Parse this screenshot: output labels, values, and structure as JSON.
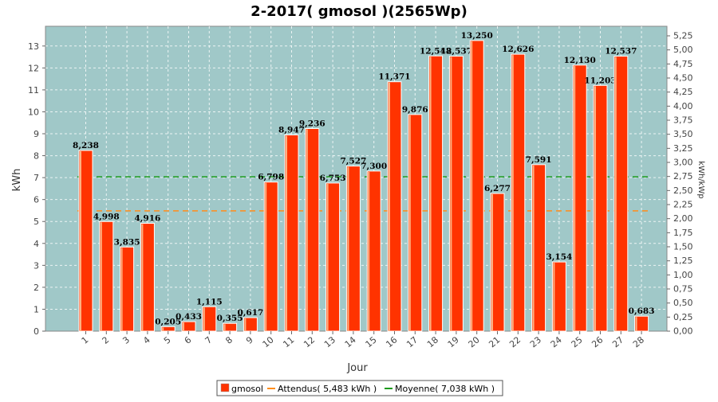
{
  "chart_data": {
    "type": "bar",
    "title": "2-2017( gmosol )(2565Wp)",
    "xlabel": "Jour",
    "ylabel": "kWh",
    "ylabel_right": "kWh/kWp",
    "categories": [
      "1",
      "2",
      "3",
      "4",
      "5",
      "6",
      "7",
      "8",
      "9",
      "10",
      "11",
      "12",
      "13",
      "14",
      "15",
      "16",
      "17",
      "18",
      "19",
      "20",
      "21",
      "22",
      "23",
      "24",
      "25",
      "26",
      "27",
      "28"
    ],
    "series": [
      {
        "name": "gmosol",
        "color": "#ff3300",
        "values": [
          8.238,
          4.998,
          3.835,
          4.916,
          0.205,
          0.433,
          1.115,
          0.355,
          0.617,
          6.798,
          8.947,
          9.236,
          6.753,
          7.527,
          7.3,
          11.371,
          9.876,
          12.548,
          12.537,
          13.25,
          6.277,
          12.626,
          7.591,
          3.154,
          12.13,
          11.203,
          12.537,
          0.683
        ],
        "labels": [
          "8,238",
          "4,998",
          "3,835",
          "4,916",
          "0,205",
          "0,433",
          "1,115",
          "0,355",
          "0,617",
          "6,798",
          "8,947",
          "9,236",
          "6,753",
          "7,527",
          "7,300",
          "11,371",
          "9,876",
          "12,548",
          "12,537",
          "13,250",
          "6,277",
          "12,626",
          "7,591",
          "3,154",
          "12,130",
          "11,203",
          "12,537",
          "0,683"
        ]
      }
    ],
    "expected": {
      "name": "Attendus( 5,483 kWh )",
      "color": "#ff8c1a",
      "values": [
        5.483,
        5.483,
        5.483,
        5.483,
        5.483,
        5.483,
        5.483,
        5.483,
        5.483,
        5.483,
        5.483,
        5.483,
        5.483,
        5.483,
        5.483,
        5.483,
        5.483,
        5.483,
        5.483,
        5.483,
        5.483,
        5.483,
        5.483,
        5.483,
        5.483,
        5.483,
        5.483,
        5.483
      ]
    },
    "average": {
      "name": "Moyenne( 7,038 kWh )",
      "color": "#1a9a1a",
      "value": 7.038
    },
    "ylim": [
      0,
      13.9
    ],
    "yticks": [
      "0",
      "1",
      "2",
      "3",
      "4",
      "5",
      "6",
      "7",
      "8",
      "9",
      "10",
      "11",
      "12",
      "13"
    ],
    "ylim_right": [
      0,
      5.42
    ],
    "yticks_right": [
      "0,00",
      "0,25",
      "0,50",
      "0,75",
      "1,00",
      "1,25",
      "1,50",
      "1,75",
      "2,00",
      "2,25",
      "2,50",
      "2,75",
      "3,00",
      "3,25",
      "3,50",
      "3,75",
      "4,00",
      "4,25",
      "4,50",
      "4,75",
      "5,00",
      "5,25"
    ],
    "plot_background": "#a0c8c8",
    "grid": true,
    "legend": "bottom"
  }
}
